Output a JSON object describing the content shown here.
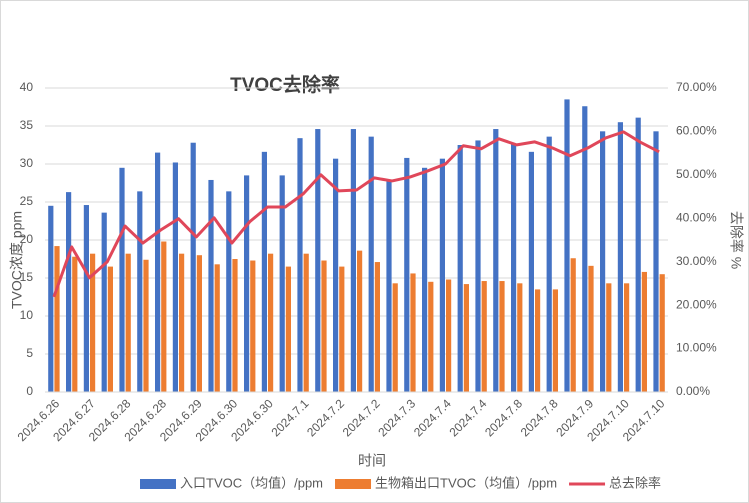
{
  "chart_data": {
    "type": "bar-line",
    "title": "TVOC去除率",
    "x_label": "时间",
    "y_label": "TVOC浓度 ppm",
    "y2_label": "去除率 %",
    "categories": [
      "2024.6.26",
      null,
      "2024.6.27",
      null,
      "2024.6.28",
      null,
      "2024.6.28",
      null,
      "2024.6.29",
      null,
      "2024.6.30",
      null,
      "2024.6.30",
      null,
      "2024.7.1",
      null,
      "2024.7.2",
      null,
      "2024.7.2",
      null,
      "2024.7.3",
      null,
      "2024.7.4",
      null,
      "2024.7.4",
      null,
      "2024.7.8",
      null,
      "2024.7.8",
      null,
      "2024.7.9",
      null,
      "2024.7.10",
      null,
      "2024.7.10"
    ],
    "series": [
      {
        "name": "入口TVOC（均值）/ppm",
        "color": "#4472c4",
        "kind": "bar",
        "values": [
          24.5,
          26.3,
          24.6,
          23.6,
          29.5,
          26.4,
          31.5,
          30.2,
          32.8,
          27.9,
          26.4,
          28.5,
          31.6,
          28.5,
          33.4,
          34.6,
          30.7,
          34.6,
          33.6,
          27.8,
          30.8,
          29.5,
          30.7,
          32.5,
          33.1,
          34.6,
          32.6,
          31.6,
          33.6,
          38.5,
          37.6,
          34.3,
          35.5,
          36.1,
          34.3
        ]
      },
      {
        "name": "生物箱出口TVOC（均值）/ppm",
        "color": "#ed7d31",
        "kind": "bar",
        "values": [
          19.2,
          17.8,
          18.2,
          16.5,
          18.2,
          17.4,
          19.8,
          18.2,
          18.0,
          16.8,
          17.5,
          17.3,
          18.2,
          16.5,
          18.2,
          17.3,
          16.5,
          18.6,
          17.1,
          14.3,
          15.6,
          14.5,
          14.8,
          14.2,
          14.6,
          14.6,
          14.3,
          13.5,
          13.5,
          17.6,
          16.6,
          14.3,
          14.3,
          15.8,
          15.5
        ]
      },
      {
        "name": "总去除率",
        "color": "#e0475a",
        "kind": "line",
        "axis": "y2",
        "values": [
          21.9,
          33.4,
          26.3,
          30.0,
          38.2,
          34.3,
          37.3,
          39.9,
          35.7,
          40.1,
          34.3,
          39.2,
          42.6,
          42.6,
          45.6,
          50.0,
          46.3,
          46.5,
          49.3,
          48.6,
          49.5,
          50.9,
          52.5,
          56.7,
          56.0,
          58.3,
          56.9,
          57.6,
          56.2,
          54.4,
          56.2,
          58.5,
          59.9,
          57.4,
          55.3
        ]
      }
    ],
    "ylim": [
      0,
      40
    ],
    "yticks": [
      0,
      5,
      10,
      15,
      20,
      25,
      30,
      35,
      40
    ],
    "y2lim": [
      0,
      70
    ],
    "y2ticks": [
      {
        "value": 0,
        "label": "0.00%"
      },
      {
        "value": 10,
        "label": "10.00%"
      },
      {
        "value": 20,
        "label": "20.00%"
      },
      {
        "value": 30,
        "label": "30.00%"
      },
      {
        "value": 40,
        "label": "40.00%"
      },
      {
        "value": 50,
        "label": "50.00%"
      },
      {
        "value": 60,
        "label": "60.00%"
      },
      {
        "value": 70,
        "label": "70.00%"
      }
    ],
    "grid": true,
    "legend": "bottom"
  }
}
